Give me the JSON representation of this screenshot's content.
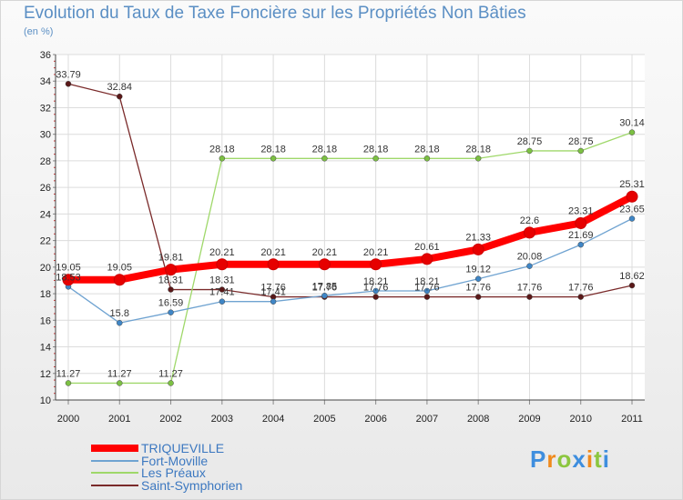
{
  "title": "Evolution du Taux de Taxe Foncière sur les Propriétés Non Bâties",
  "subtitle": "(en %)",
  "logo": {
    "text": "Proxiti",
    "letters": [
      {
        "ch": "P",
        "color": "#3e8ede"
      },
      {
        "ch": "r",
        "color": "#f08a1c"
      },
      {
        "ch": "o",
        "color": "#8cc63f"
      },
      {
        "ch": "x",
        "color": "#3e8ede"
      },
      {
        "ch": "i",
        "color": "#f08a1c"
      },
      {
        "ch": "t",
        "color": "#8cc63f"
      },
      {
        "ch": "i",
        "color": "#3e8ede"
      }
    ]
  },
  "chart_data": {
    "type": "line",
    "title": "Evolution du Taux de Taxe Foncière sur les Propriétés Non Bâties",
    "ylabel": "(en %)",
    "xlabel": "",
    "ylim": [
      10,
      36
    ],
    "yticks": [
      10,
      12,
      14,
      16,
      18,
      20,
      22,
      24,
      26,
      28,
      30,
      32,
      34,
      36
    ],
    "categories": [
      "2000",
      "2001",
      "2002",
      "2003",
      "2004",
      "2005",
      "2006",
      "2007",
      "2008",
      "2009",
      "2010",
      "2011"
    ],
    "grid": true,
    "series": [
      {
        "name": "Saint-Symphorien",
        "color": "#7a2a2a",
        "point_color": "#5a1818",
        "values": [
          33.79,
          32.84,
          18.31,
          18.31,
          17.76,
          17.76,
          17.76,
          17.76,
          17.76,
          17.76,
          17.76,
          18.62
        ],
        "labels": [
          "33.79",
          "32.84",
          "18.31",
          "18.31",
          "17.76",
          "17.76",
          "17.76",
          "17.76",
          "17.76",
          "17.76",
          "17.76",
          "18.62"
        ]
      },
      {
        "name": "Les Préaux",
        "color": "#9fd86a",
        "point_color": "#7cc043",
        "values": [
          11.27,
          11.27,
          11.27,
          28.18,
          28.18,
          28.18,
          28.18,
          28.18,
          28.18,
          28.75,
          28.75,
          30.14
        ],
        "labels": [
          "11.27",
          "11.27",
          "11.27",
          "28.18",
          "28.18",
          "28.18",
          "28.18",
          "28.18",
          "28.18",
          "28.75",
          "28.75",
          "30.14"
        ]
      },
      {
        "name": "Fort-Moville",
        "color": "#6fa3d1",
        "point_color": "#3f86c6",
        "values": [
          18.53,
          15.8,
          16.59,
          17.41,
          17.41,
          17.85,
          18.21,
          18.21,
          19.12,
          20.08,
          21.69,
          23.65
        ],
        "labels": [
          "18.53",
          "15.8",
          "16.59",
          "17.41",
          "17.41",
          "17.85",
          "18.21",
          "18.21",
          "19.12",
          "20.08",
          "21.69",
          "23.65"
        ]
      },
      {
        "name": "TRIQUEVILLE",
        "color": "#ff0000",
        "point_color": "#e60000",
        "values": [
          19.05,
          19.05,
          19.81,
          20.21,
          20.21,
          20.21,
          20.21,
          20.61,
          21.33,
          22.6,
          23.31,
          25.31
        ],
        "labels": [
          "19.05",
          "19.05",
          "19.81",
          "20.21",
          "20.21",
          "20.21",
          "20.21",
          "20.61",
          "21.33",
          "22.6",
          "23.31",
          "25.31"
        ]
      }
    ],
    "legend": [
      "TRIQUEVILLE",
      "Fort-Moville",
      "Les Préaux",
      "Saint-Symphorien"
    ],
    "legend_position": "bottom-left"
  }
}
